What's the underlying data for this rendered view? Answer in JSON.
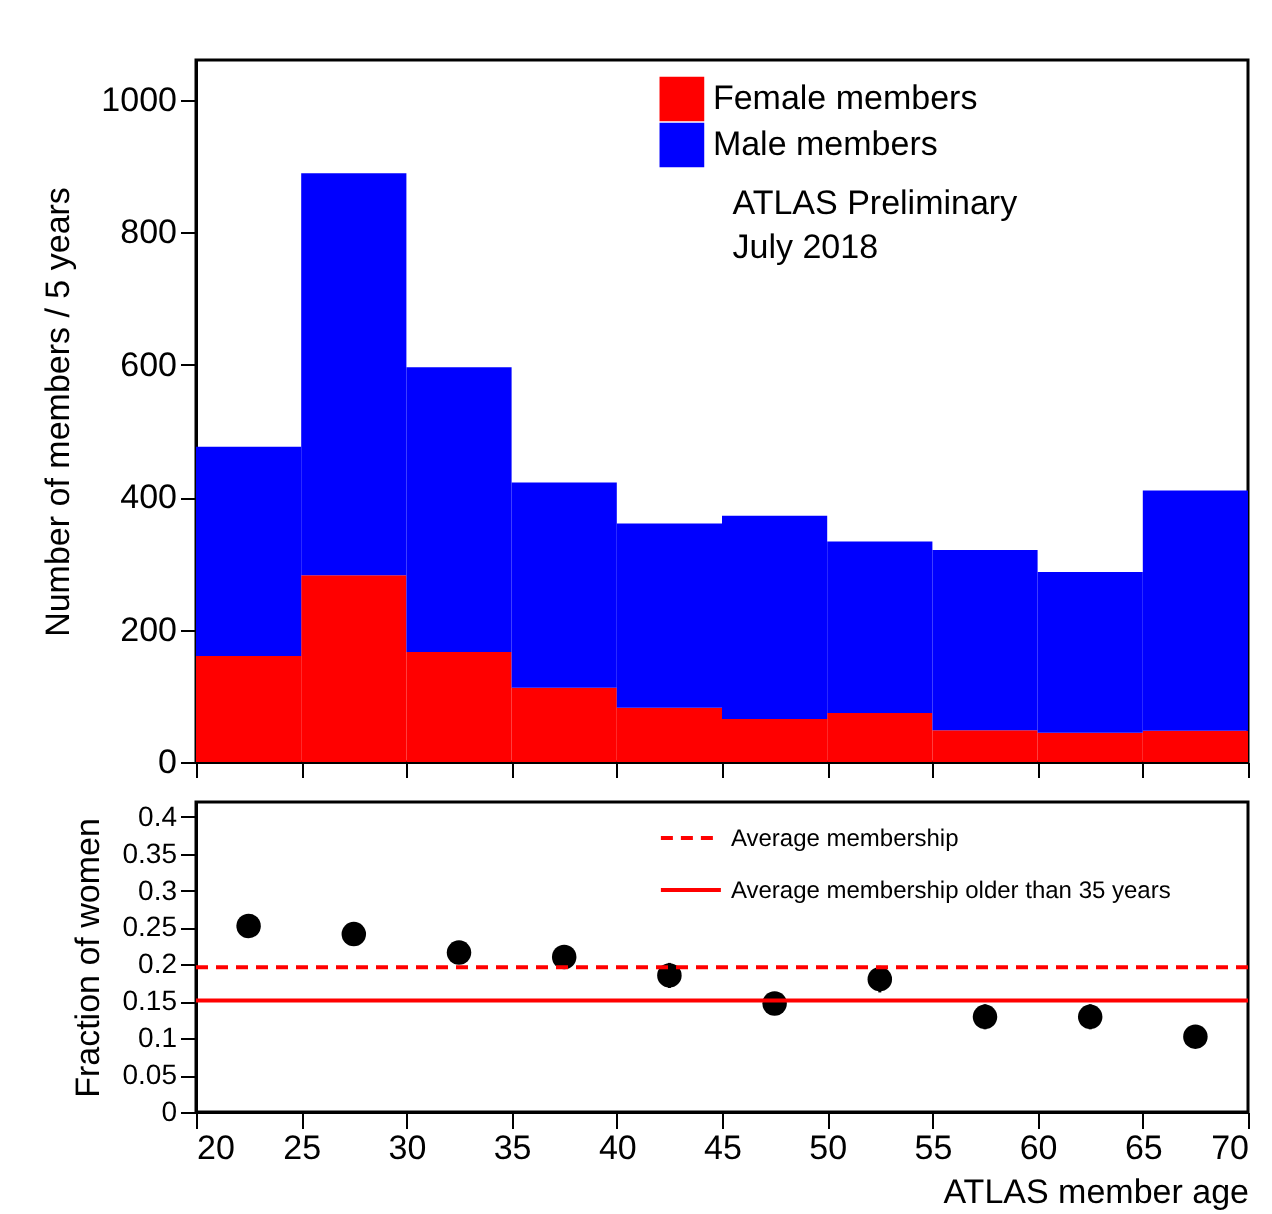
{
  "chart_data": [
    {
      "type": "bar",
      "ylabel": "Number of members / 5 years",
      "stacked": true,
      "legend": "top right",
      "tick_labels": "y",
      "grid": false,
      "categories": [
        null,
        null,
        null,
        null,
        null,
        null,
        null,
        null,
        null,
        null
      ],
      "series": [
        {
          "name": "Female members",
          "color": "#ff0000",
          "values": [
            160,
            282,
            166,
            112,
            82,
            65,
            74,
            48,
            44,
            47
          ]
        },
        {
          "name": "Male members",
          "color": "#0000ff",
          "values": [
            316,
            607,
            430,
            310,
            278,
            307,
            259,
            272,
            243,
            363
          ]
        }
      ],
      "ylim": [
        0,
        1060
      ],
      "yticks": [
        0,
        200,
        400,
        600,
        800,
        1000
      ],
      "annotations": [
        "ATLAS Preliminary",
        "July 2018"
      ]
    },
    {
      "type": "scatter",
      "xlabel": "ATLAS member age",
      "ylabel": "Fraction of women",
      "marker": "circle",
      "legend": "top right",
      "grid": false,
      "series": [
        {
          "color": "#000000",
          "x": [
            22.5,
            27.5,
            32.5,
            37.5,
            42.5,
            47.5,
            52.5,
            57.5,
            62.5,
            67.5
          ],
          "values": [
            0.252,
            0.241,
            0.216,
            0.21,
            0.185,
            0.147,
            0.18,
            0.129,
            0.129,
            0.102
          ],
          "errors": [
            0.015,
            0.012,
            0.013,
            0.015,
            0.017,
            0.015,
            0.018,
            0.017,
            0.017,
            0.012
          ]
        }
      ],
      "ref_lines": [
        {
          "axis": "y",
          "value": 0.196,
          "label": "Average membership",
          "color": "#ff0000",
          "line_style": "dashed"
        },
        {
          "axis": "y",
          "value": 0.151,
          "label": "Average membership older than  35 years",
          "color": "#ff0000",
          "line_style": "solid"
        }
      ],
      "xlim": [
        20,
        70
      ],
      "xticks": [
        20,
        25,
        30,
        35,
        40,
        45,
        50,
        55,
        60,
        65,
        70
      ],
      "ylim": [
        0,
        0.42
      ],
      "yticks": [
        0,
        0.05,
        0.1,
        0.15,
        0.2,
        0.25,
        0.3,
        0.35,
        0.4
      ]
    }
  ]
}
